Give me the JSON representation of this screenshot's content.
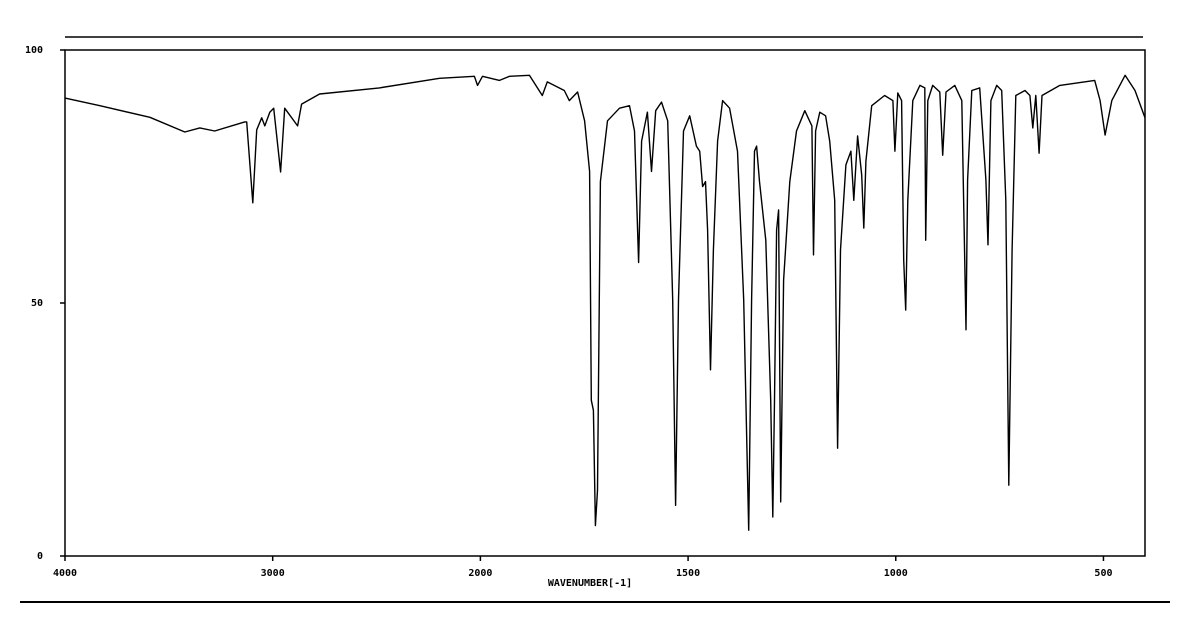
{
  "chart_data": {
    "type": "line",
    "xlabel": "WAVENUMBER[-1]",
    "x": [
      4000,
      3832,
      3591,
      3423,
      3351,
      3279,
      3135,
      3125,
      3096,
      3077,
      3053,
      3038,
      3014,
      2995,
      2962,
      2942,
      2880,
      2861,
      2774,
      2486,
      2197,
      2029,
      2014,
      1995,
      1954,
      1930,
      1882,
      1851,
      1839,
      1798,
      1786,
      1766,
      1749,
      1737,
      1733,
      1728,
      1723,
      1718,
      1711,
      1694,
      1665,
      1641,
      1629,
      1619,
      1612,
      1598,
      1588,
      1578,
      1564,
      1549,
      1537,
      1530,
      1523,
      1511,
      1496,
      1480,
      1472,
      1465,
      1458,
      1453,
      1446,
      1439,
      1429,
      1417,
      1400,
      1381,
      1366,
      1354,
      1347,
      1340,
      1335,
      1328,
      1313,
      1301,
      1296,
      1292,
      1287,
      1282,
      1277,
      1270,
      1255,
      1239,
      1219,
      1202,
      1198,
      1193,
      1183,
      1169,
      1159,
      1147,
      1140,
      1133,
      1120,
      1108,
      1101,
      1092,
      1082,
      1077,
      1072,
      1058,
      1027,
      1007,
      1002,
      995,
      986,
      981,
      976,
      971,
      959,
      942,
      930,
      928,
      923,
      911,
      894,
      887,
      879,
      858,
      841,
      831,
      827,
      817,
      798,
      783,
      778,
      771,
      757,
      745,
      735,
      728,
      720,
      711,
      689,
      677,
      670,
      663,
      655,
      648,
      605,
      521,
      508,
      496,
      480,
      448,
      424,
      400
    ],
    "values": [
      90.5,
      89,
      86.7,
      83.8,
      84.6,
      84,
      85.8,
      85.8,
      69.8,
      84.2,
      86.6,
      85,
      87.7,
      88.5,
      75.9,
      88.5,
      85,
      89.3,
      91.3,
      92.5,
      94.4,
      94.8,
      93,
      94.8,
      94,
      94.8,
      95,
      91,
      93.7,
      92,
      90,
      91.7,
      86,
      76,
      30.8,
      28.8,
      6,
      13,
      74,
      86,
      88.5,
      89,
      84,
      58,
      82,
      87.7,
      76,
      88,
      89.7,
      86,
      50.6,
      10,
      50.6,
      84,
      87,
      81,
      80,
      73,
      74,
      64.4,
      36.8,
      60.5,
      82,
      90,
      88.5,
      80,
      50.6,
      5.1,
      50.6,
      80,
      81,
      74,
      62.4,
      30.8,
      7.7,
      30.8,
      64.4,
      68.4,
      10.7,
      54.5,
      74,
      84,
      88,
      85,
      59.5,
      84,
      87.7,
      87,
      82,
      70.3,
      21.3,
      60.5,
      77.3,
      80,
      70.3,
      83,
      75.3,
      64.8,
      78,
      89,
      91,
      90,
      80,
      91.5,
      90,
      58.5,
      48.6,
      70.3,
      90,
      93,
      92.5,
      62.4,
      90,
      93,
      91.7,
      79.2,
      91.7,
      93,
      90,
      44.7,
      74.3,
      92,
      92.5,
      74.3,
      61.5,
      90,
      93,
      92,
      70.3,
      14,
      60.5,
      91,
      92,
      91,
      84.6,
      91,
      79.6,
      91,
      93,
      94,
      90,
      83.2,
      90,
      95,
      92,
      86.6
    ],
    "color": "#000000",
    "xlim": [
      4000,
      400
    ],
    "xticks": [
      4000,
      3000,
      2000,
      1500,
      1000,
      500
    ],
    "ylim": [
      0,
      100
    ],
    "yticks": [
      0,
      50,
      100
    ]
  }
}
